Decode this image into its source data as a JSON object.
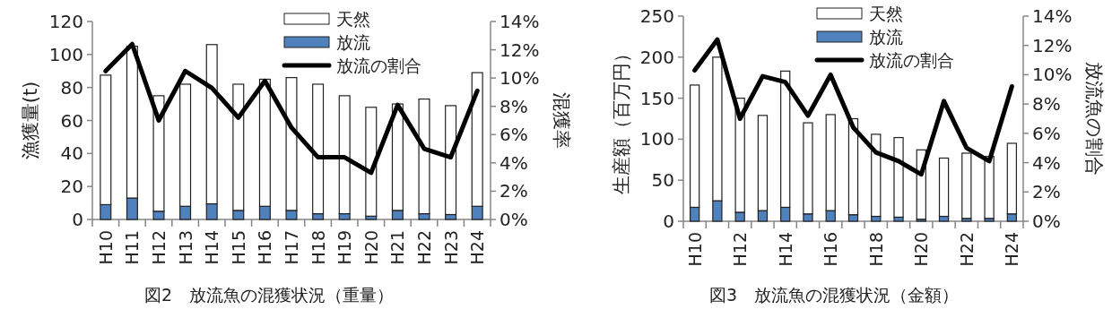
{
  "chart_data": [
    {
      "type": "bar",
      "stacked": true,
      "categories": [
        "H10",
        "H11",
        "H12",
        "H13",
        "H14",
        "H15",
        "H16",
        "H17",
        "H18",
        "H19",
        "H20",
        "H21",
        "H22",
        "H23",
        "H24"
      ],
      "series": [
        {
          "name": "放流",
          "color": "#4f81bd",
          "values": [
            9,
            13,
            5,
            8,
            9.5,
            5.5,
            8,
            5.5,
            3.5,
            3.5,
            2,
            5.5,
            3.5,
            3,
            8
          ]
        },
        {
          "name": "天然",
          "color": "#ffffff",
          "values": [
            78.5,
            92,
            70,
            74,
            96.5,
            76.5,
            77,
            80.5,
            78.5,
            71.5,
            66,
            64.5,
            69.5,
            66,
            81
          ]
        },
        {
          "name": "放流の割合",
          "type": "line",
          "axis": "y2",
          "color": "#000000",
          "values": [
            10.5,
            12.4,
            7.0,
            10.5,
            9.3,
            7.2,
            9.8,
            6.5,
            4.4,
            4.4,
            3.3,
            8.1,
            5.0,
            4.4,
            9.1
          ]
        }
      ],
      "ylabel": "漁獲量(t)",
      "y2label": "混獲率",
      "ylim": [
        0,
        120
      ],
      "yticks": [
        0,
        20,
        40,
        60,
        80,
        100,
        120
      ],
      "y2lim": [
        0,
        14
      ],
      "y2ticks": [
        {
          "value": 0,
          "label": "0%"
        },
        {
          "value": 2,
          "label": "2%"
        },
        {
          "value": 4,
          "label": "4%"
        },
        {
          "value": 6,
          "label": "6%"
        },
        {
          "value": 8,
          "label": "8%"
        },
        {
          "value": 10,
          "label": "10%"
        },
        {
          "value": 12,
          "label": "12%"
        },
        {
          "value": 14,
          "label": "14%"
        }
      ],
      "legend": "top right",
      "annotations": [
        "図2　放流魚の混獲状況（重量）"
      ]
    },
    {
      "type": "bar",
      "stacked": true,
      "categories": [
        "H10",
        null,
        "H12",
        null,
        "H14",
        null,
        "H16",
        null,
        "H18",
        null,
        "H20",
        null,
        "H22",
        null,
        "H24"
      ],
      "series": [
        {
          "name": "放流",
          "color": "#4f81bd",
          "values": [
            17,
            25,
            11,
            13,
            17,
            9,
            13,
            8,
            6,
            5,
            2.5,
            6,
            3.5,
            3.5,
            9
          ]
        },
        {
          "name": "天然",
          "color": "#ffffff",
          "values": [
            149,
            175,
            139,
            116,
            166,
            111,
            117,
            117,
            100,
            97,
            84.5,
            71,
            79.5,
            75.5,
            86
          ]
        },
        {
          "name": "放流の割合",
          "type": "line",
          "axis": "y2",
          "color": "#000000",
          "values": [
            10.3,
            12.4,
            7.0,
            9.9,
            9.5,
            7.2,
            10.0,
            6.4,
            4.7,
            4.1,
            3.2,
            8.2,
            5.0,
            4.1,
            9.2
          ]
        }
      ],
      "ylabel": "生産額（百万円）",
      "y2label": "放流魚の割合",
      "ylim": [
        0,
        250
      ],
      "yticks": [
        0,
        50,
        100,
        150,
        200,
        250
      ],
      "y2lim": [
        0,
        14
      ],
      "y2ticks": [
        {
          "value": 0,
          "label": "0%"
        },
        {
          "value": 2,
          "label": "2%"
        },
        {
          "value": 4,
          "label": "4%"
        },
        {
          "value": 6,
          "label": "6%"
        },
        {
          "value": 8,
          "label": "8%"
        },
        {
          "value": 10,
          "label": "10%"
        },
        {
          "value": 12,
          "label": "12%"
        },
        {
          "value": 14,
          "label": "14%"
        }
      ],
      "legend": "top right",
      "annotations": [
        "図3　放流魚の混獲状況（金額）"
      ]
    }
  ]
}
